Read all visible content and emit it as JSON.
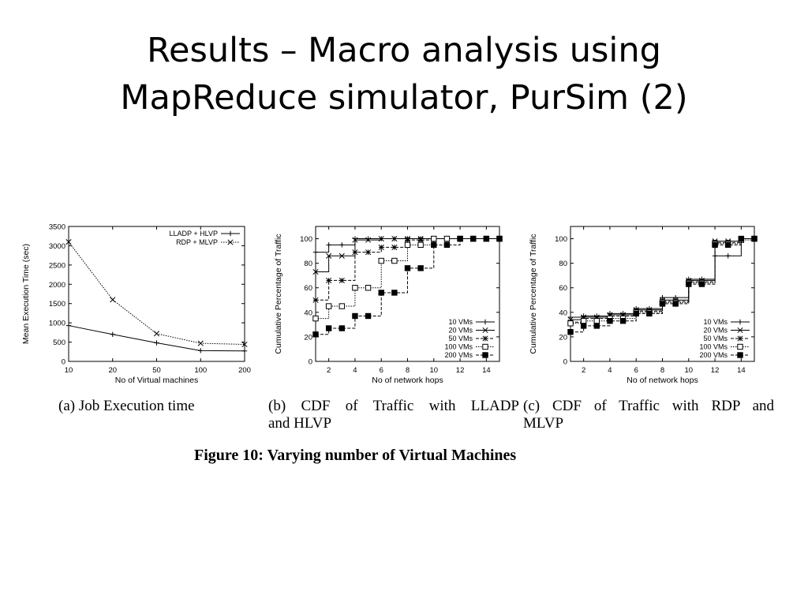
{
  "title": {
    "line1": "Results – Macro analysis using",
    "line2": "MapReduce simulator, PurSim (2)"
  },
  "figure_caption": "Figure 10: Varying number of Virtual Machines",
  "subcaptions": {
    "a": {
      "label": "(a)",
      "text": "Job Execution time"
    },
    "b": {
      "label": "(b)",
      "line1": "CDF of Traffic with LLADP",
      "line2": "and HLVP"
    },
    "c": {
      "label": "(c)",
      "line1": "CDF of Traffic with RDP and",
      "line2": "MLVP"
    }
  },
  "chart_data": [
    {
      "type": "line",
      "xlabel": "No of Virtual machines",
      "ylabel": "Mean Execution Time (sec)",
      "categories": [
        "10",
        "20",
        "50",
        "100",
        "200"
      ],
      "ylim": [
        0,
        3500
      ],
      "yticks": [
        0,
        500,
        1000,
        1500,
        2000,
        2500,
        3000,
        3500
      ],
      "legend_position": "top-right",
      "grid": false,
      "series": [
        {
          "name": "LLADP + HLVP",
          "marker": "plus",
          "dash": "solid",
          "values": [
            930,
            700,
            480,
            280,
            270
          ]
        },
        {
          "name": "RDP + MLVP",
          "marker": "x",
          "dash": "dotted",
          "values": [
            3100,
            1600,
            720,
            470,
            440
          ]
        }
      ]
    },
    {
      "type": "line",
      "step": true,
      "xlabel": "No of network hops",
      "ylabel": "Cumulative Percentage of Traffic",
      "xlim": [
        1,
        15
      ],
      "xticks": [
        2,
        4,
        6,
        8,
        10,
        12,
        14
      ],
      "ylim": [
        0,
        110
      ],
      "yticks": [
        0,
        20,
        40,
        60,
        80,
        100
      ],
      "legend_position": "bottom-right",
      "grid": false,
      "series": [
        {
          "name": "10 VMs",
          "marker": "plus",
          "dash": "solid",
          "points": [
            [
              1,
              89
            ],
            [
              2,
              95
            ],
            [
              3,
              95
            ],
            [
              4,
              100
            ],
            [
              5,
              100
            ],
            [
              6,
              100
            ],
            [
              7,
              100
            ],
            [
              8,
              100
            ],
            [
              9,
              100
            ],
            [
              10,
              100
            ],
            [
              11,
              100
            ],
            [
              12,
              100
            ],
            [
              13,
              100
            ],
            [
              14,
              100
            ],
            [
              15,
              100
            ]
          ]
        },
        {
          "name": "20 VMs",
          "marker": "x",
          "dash": "solid",
          "points": [
            [
              1,
              73
            ],
            [
              2,
              86
            ],
            [
              3,
              86
            ],
            [
              4,
              99
            ],
            [
              5,
              99
            ],
            [
              6,
              100
            ],
            [
              7,
              100
            ],
            [
              8,
              100
            ],
            [
              9,
              100
            ],
            [
              10,
              100
            ],
            [
              11,
              100
            ],
            [
              12,
              100
            ],
            [
              13,
              100
            ],
            [
              14,
              100
            ],
            [
              15,
              100
            ]
          ]
        },
        {
          "name": "50 VMs",
          "marker": "asterisk",
          "dash": "dashed",
          "points": [
            [
              1,
              50
            ],
            [
              2,
              66
            ],
            [
              3,
              66
            ],
            [
              4,
              89
            ],
            [
              5,
              89
            ],
            [
              6,
              93
            ],
            [
              7,
              93
            ],
            [
              8,
              99
            ],
            [
              9,
              99
            ],
            [
              10,
              100
            ],
            [
              11,
              100
            ],
            [
              12,
              100
            ],
            [
              13,
              100
            ],
            [
              14,
              100
            ],
            [
              15,
              100
            ]
          ]
        },
        {
          "name": "100 VMs",
          "marker": "square-open",
          "dash": "dotted",
          "points": [
            [
              1,
              35
            ],
            [
              2,
              45
            ],
            [
              3,
              45
            ],
            [
              4,
              60
            ],
            [
              5,
              60
            ],
            [
              6,
              82
            ],
            [
              7,
              82
            ],
            [
              8,
              95
            ],
            [
              9,
              95
            ],
            [
              10,
              100
            ],
            [
              11,
              100
            ],
            [
              12,
              100
            ],
            [
              13,
              100
            ],
            [
              14,
              100
            ],
            [
              15,
              100
            ]
          ]
        },
        {
          "name": "200 VMs",
          "marker": "square-filled",
          "dash": "dashed",
          "points": [
            [
              1,
              22
            ],
            [
              2,
              27
            ],
            [
              3,
              27
            ],
            [
              4,
              37
            ],
            [
              5,
              37
            ],
            [
              6,
              56
            ],
            [
              7,
              56
            ],
            [
              8,
              76
            ],
            [
              9,
              76
            ],
            [
              10,
              95
            ],
            [
              11,
              95
            ],
            [
              12,
              100
            ],
            [
              13,
              100
            ],
            [
              14,
              100
            ],
            [
              15,
              100
            ]
          ]
        }
      ]
    },
    {
      "type": "line",
      "step": true,
      "xlabel": "No of network hops",
      "ylabel": "Cumulative Percentage of Traffic",
      "xlim": [
        1,
        15
      ],
      "xticks": [
        2,
        4,
        6,
        8,
        10,
        12,
        14
      ],
      "ylim": [
        0,
        110
      ],
      "yticks": [
        0,
        20,
        40,
        60,
        80,
        100
      ],
      "legend_position": "bottom-right",
      "grid": false,
      "series": [
        {
          "name": "10 VMs",
          "marker": "plus",
          "dash": "solid",
          "points": [
            [
              1,
              36
            ],
            [
              2,
              37
            ],
            [
              3,
              37
            ],
            [
              4,
              39
            ],
            [
              5,
              39
            ],
            [
              6,
              43
            ],
            [
              7,
              43
            ],
            [
              8,
              52
            ],
            [
              9,
              52
            ],
            [
              10,
              67
            ],
            [
              11,
              67
            ],
            [
              12,
              86
            ],
            [
              13,
              86
            ],
            [
              14,
              100
            ],
            [
              15,
              100
            ]
          ]
        },
        {
          "name": "20 VMs",
          "marker": "x",
          "dash": "solid",
          "points": [
            [
              1,
              34
            ],
            [
              2,
              36
            ],
            [
              3,
              36
            ],
            [
              4,
              38
            ],
            [
              5,
              38
            ],
            [
              6,
              42
            ],
            [
              7,
              42
            ],
            [
              8,
              50
            ],
            [
              9,
              50
            ],
            [
              10,
              66
            ],
            [
              11,
              66
            ],
            [
              12,
              98
            ],
            [
              13,
              98
            ],
            [
              14,
              100
            ],
            [
              15,
              100
            ]
          ]
        },
        {
          "name": "50 VMs",
          "marker": "asterisk",
          "dash": "dashed",
          "points": [
            [
              1,
              32
            ],
            [
              2,
              35
            ],
            [
              3,
              35
            ],
            [
              4,
              37
            ],
            [
              5,
              37
            ],
            [
              6,
              41
            ],
            [
              7,
              41
            ],
            [
              8,
              49
            ],
            [
              9,
              49
            ],
            [
              10,
              65
            ],
            [
              11,
              65
            ],
            [
              12,
              97
            ],
            [
              13,
              97
            ],
            [
              14,
              100
            ],
            [
              15,
              100
            ]
          ]
        },
        {
          "name": "100 VMs",
          "marker": "square-open",
          "dash": "dotted",
          "points": [
            [
              1,
              31
            ],
            [
              2,
              33
            ],
            [
              3,
              33
            ],
            [
              4,
              35
            ],
            [
              5,
              35
            ],
            [
              6,
              40
            ],
            [
              7,
              40
            ],
            [
              8,
              48
            ],
            [
              9,
              48
            ],
            [
              10,
              64
            ],
            [
              11,
              64
            ],
            [
              12,
              96
            ],
            [
              13,
              96
            ],
            [
              14,
              99
            ],
            [
              15,
              100
            ]
          ]
        },
        {
          "name": "200 VMs",
          "marker": "square-filled",
          "dash": "dashed",
          "points": [
            [
              1,
              24
            ],
            [
              2,
              29
            ],
            [
              3,
              29
            ],
            [
              4,
              33
            ],
            [
              5,
              33
            ],
            [
              6,
              39
            ],
            [
              7,
              39
            ],
            [
              8,
              47
            ],
            [
              9,
              47
            ],
            [
              10,
              63
            ],
            [
              11,
              63
            ],
            [
              12,
              95
            ],
            [
              13,
              95
            ],
            [
              14,
              100
            ],
            [
              15,
              100
            ]
          ]
        }
      ]
    }
  ]
}
